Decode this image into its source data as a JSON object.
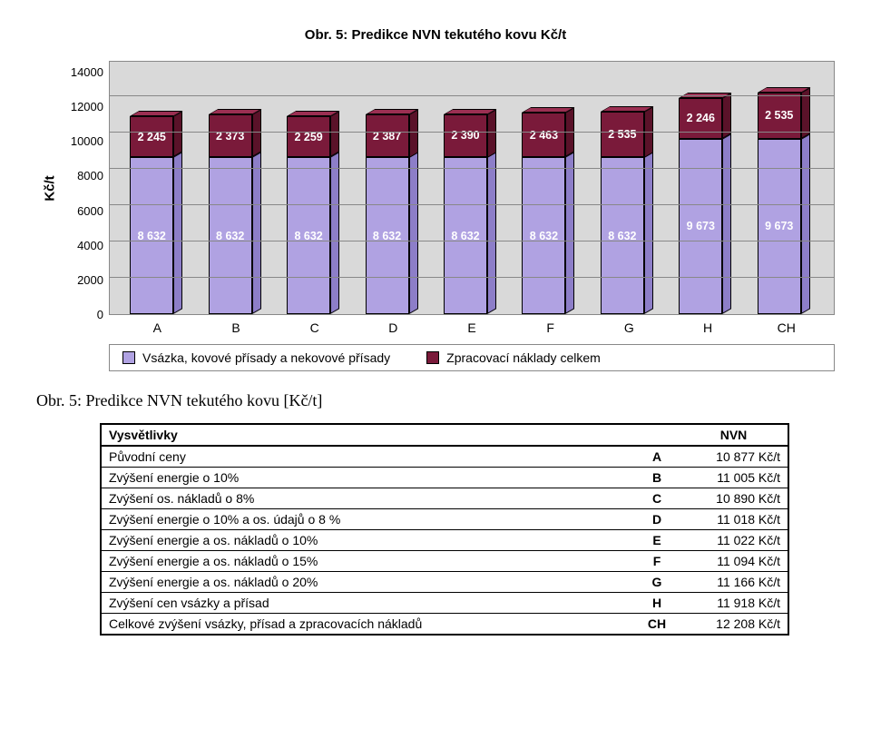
{
  "chart": {
    "title": "Obr. 5: Predikce NVN tekutého kovu Kč/t",
    "ylabel": "Kč/t",
    "ymax": 14000,
    "ytick": 2000,
    "yTicks": [
      "14000",
      "12000",
      "10000",
      "8000",
      "6000",
      "4000",
      "2000",
      "0"
    ],
    "categories": [
      "A",
      "B",
      "C",
      "D",
      "E",
      "F",
      "G",
      "H",
      "CH"
    ],
    "series": {
      "bottom": {
        "label": "Vsázka, kovové přísady a nekovové přísady",
        "color": "#b0a2e2",
        "sideColor": "#8d7ec8",
        "topColor": "#cfc5f0"
      },
      "top": {
        "label": "Zpracovací náklady celkem",
        "color": "#7a1a3a",
        "sideColor": "#5a1229",
        "topColor": "#9b2f52"
      }
    },
    "bottomValues": [
      8632,
      8632,
      8632,
      8632,
      8632,
      8632,
      8632,
      9673,
      9673
    ],
    "topValues": [
      2245,
      2373,
      2259,
      2387,
      2390,
      2463,
      2535,
      2246,
      2535
    ],
    "bottomLabels": [
      "8 632",
      "8 632",
      "8 632",
      "8 632",
      "8 632",
      "8 632",
      "8 632",
      "9 673",
      "9 673"
    ],
    "topLabels": [
      "2 245",
      "2 373",
      "2 259",
      "2 387",
      "2 390",
      "2 463",
      "2 535",
      "2 246",
      "2 535"
    ],
    "plotHeightPx": 280,
    "depthX": 10,
    "depthY": 6,
    "background": "#d9d9d9",
    "gridColor": "#888888"
  },
  "caption": "Obr. 5: Predikce NVN tekutého kovu [Kč/t]",
  "table": {
    "header": {
      "c1": "Vysvětlivky",
      "c3": "NVN"
    },
    "rows": [
      {
        "c1": "Původní ceny",
        "c2": "A",
        "c3": "10 877 Kč/t"
      },
      {
        "c1": "Zvýšení energie o 10%",
        "c2": "B",
        "c3": "11 005 Kč/t"
      },
      {
        "c1": "Zvýšení os. nákladů o 8%",
        "c2": "C",
        "c3": "10 890 Kč/t"
      },
      {
        "c1": "Zvýšení energie o 10% a os. údajů o 8 %",
        "c2": "D",
        "c3": "11 018 Kč/t"
      },
      {
        "c1": "Zvýšení energie a os. nákladů o 10%",
        "c2": "E",
        "c3": "11 022 Kč/t"
      },
      {
        "c1": "Zvýšení energie a os. nákladů o 15%",
        "c2": "F",
        "c3": "11 094 Kč/t"
      },
      {
        "c1": "Zvýšení energie a os. nákladů o 20%",
        "c2": "G",
        "c3": "11 166 Kč/t"
      },
      {
        "c1": "Zvýšení cen vsázky a přísad",
        "c2": "H",
        "c3": "11 918 Kč/t"
      },
      {
        "c1": "Celkové zvýšení vsázky, přísad a zpracovacích nákladů",
        "c2": "CH",
        "c3": "12 208 Kč/t"
      }
    ]
  }
}
